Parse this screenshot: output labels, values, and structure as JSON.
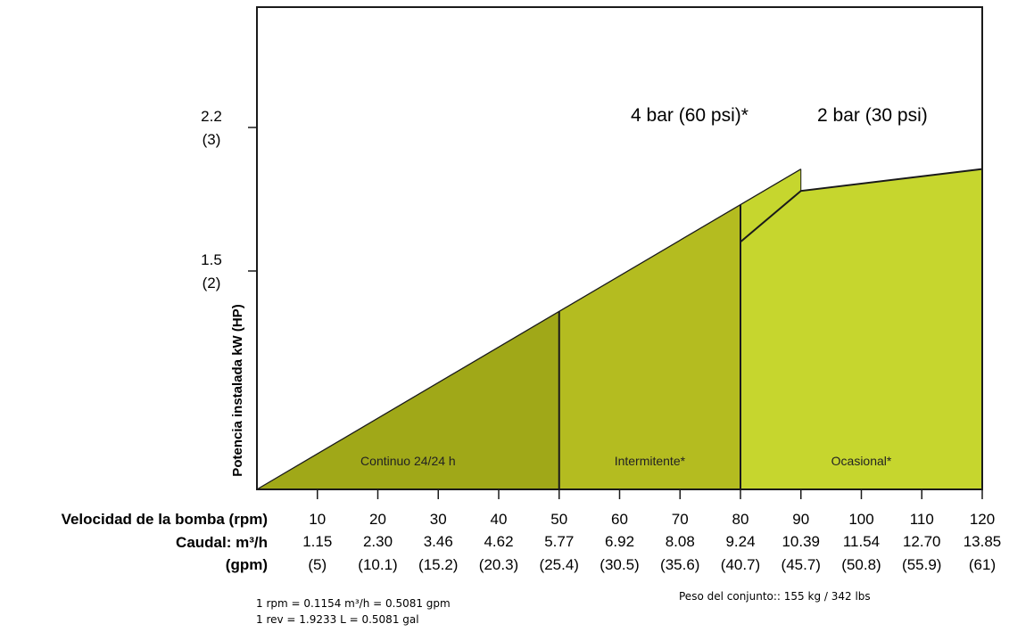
{
  "chart_data": {
    "type": "area",
    "ylabel": "Potencia instalada kW (HP)",
    "xlim": [
      0,
      120
    ],
    "ylim": [
      0,
      3
    ],
    "y_ticks": [
      {
        "value": 1.5,
        "label": "1.5",
        "sublabel": "(2)"
      },
      {
        "value": 2.2,
        "label": "2.2",
        "sublabel": "(3)"
      }
    ],
    "x_rows": [
      {
        "label": "Velocidad de la bomba (rpm)",
        "values": [
          "10",
          "20",
          "30",
          "40",
          "50",
          "60",
          "70",
          "80",
          "90",
          "100",
          "110",
          "120"
        ]
      },
      {
        "label": "Caudal: m³/h",
        "values": [
          "1.15",
          "2.30",
          "3.46",
          "4.62",
          "5.77",
          "6.92",
          "8.08",
          "9.24",
          "10.39",
          "11.54",
          "12.70",
          "13.85"
        ]
      },
      {
        "label": "(gpm)",
        "values": [
          "(5)",
          "(10.1)",
          "(15.2)",
          "(20.3)",
          "(25.4)",
          "(30.5)",
          "(35.6)",
          "(40.7)",
          "(45.7)",
          "(50.8)",
          "(55.9)",
          "(61)"
        ]
      }
    ],
    "x_tick_values": [
      10,
      20,
      30,
      40,
      50,
      60,
      70,
      80,
      90,
      100,
      110,
      120
    ],
    "series": [
      {
        "name": "4 bar (60 psi)*",
        "x": [
          0,
          90
        ],
        "y": [
          0,
          2.2
        ]
      },
      {
        "name": "2 bar (30 psi)",
        "x": [
          80,
          90,
          120
        ],
        "y": [
          1.7,
          2.05,
          2.2
        ]
      }
    ],
    "zones": [
      {
        "label": "Continuo 24/24 h",
        "x_range": [
          0,
          50
        ],
        "color": "#a0a818"
      },
      {
        "label": "Intermitente*",
        "x_range": [
          50,
          80
        ],
        "color": "#b4bc20"
      },
      {
        "label": "Ocasional*",
        "x_range": [
          80,
          120
        ],
        "color": "#c6d62e"
      }
    ],
    "notes": {
      "conversion_1": "1 rpm = 0.1154 m³/h = 0.5081 gpm",
      "conversion_2": "1 rev = 1.9233 L = 0.5081 gal",
      "weight": "Peso del conjunto:: 155 kg / 342 lbs"
    }
  }
}
